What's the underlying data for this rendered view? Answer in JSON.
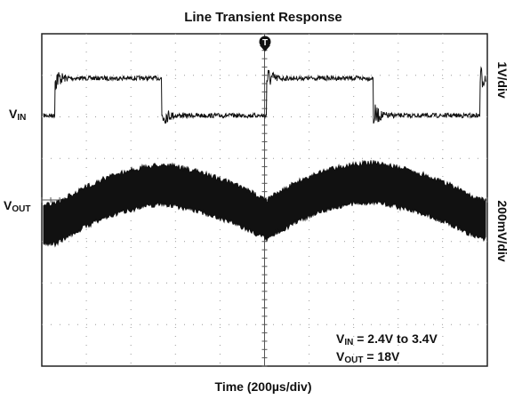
{
  "chart_data": {
    "type": "oscilloscope",
    "title": "Line Transient Response",
    "x_label": "Time (200µs/div)",
    "channels": [
      {
        "label": {
          "main": "V",
          "sub": "IN"
        },
        "scale": "1V/div"
      },
      {
        "label": {
          "main": "V",
          "sub": "OUT"
        },
        "scale": "200mV/div"
      }
    ],
    "trigger": "T",
    "annotations": [
      {
        "main": "V",
        "sub": "IN",
        "text": " = 2.4V to 3.4V"
      },
      {
        "main": "V",
        "sub": "OUT",
        "text": " = 18V"
      }
    ]
  }
}
